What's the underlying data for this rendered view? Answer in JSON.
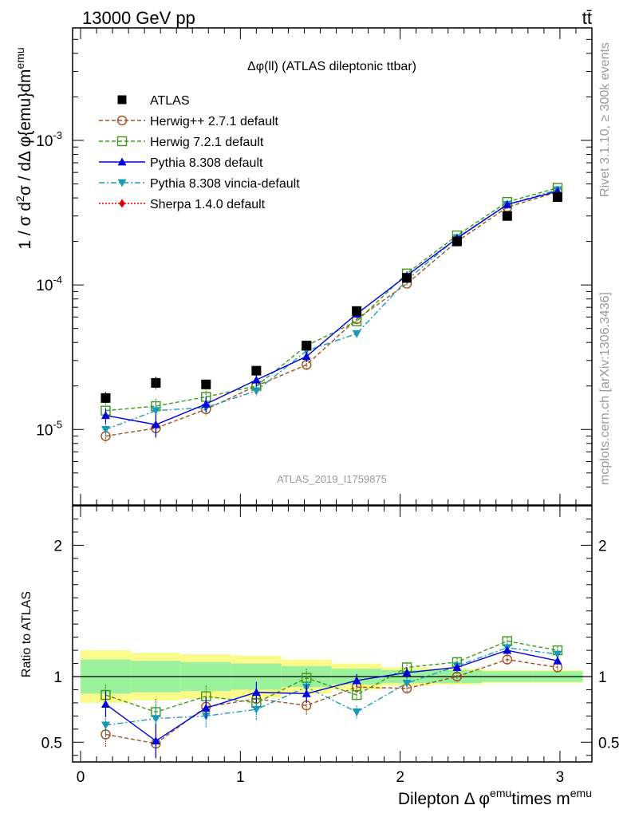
{
  "header": {
    "left": "13000 GeV pp",
    "right": "tt̄"
  },
  "side": {
    "rivet": "Rivet 3.1.10, ≥ 300k events",
    "mcplots": "mcplots.cern.ch [arXiv:1306.3436]"
  },
  "chart_data": [
    {
      "type": "scatter",
      "panel": "main",
      "title": "Δφ(ll) (ATLAS dileptonic ttbar)",
      "watermark": "ATLAS_2019_I1759875",
      "ylabel": "1 / σ  d²σ / dΔ φ{emu}dm^{emu}",
      "yscale": "log",
      "ylim": [
        3e-06,
        0.006
      ],
      "xlim": [
        -0.05,
        3.2
      ],
      "y_ticks": [
        {
          "value": 1e-05,
          "label": "10^{-5}"
        },
        {
          "value": 0.0001,
          "label": "10^{-4}"
        },
        {
          "value": 0.001,
          "label": "10^{-3}"
        }
      ],
      "x": [
        0.157,
        0.471,
        0.785,
        1.1,
        1.414,
        1.728,
        2.042,
        2.356,
        2.67,
        2.985
      ],
      "series": [
        {
          "name": "ATLAS",
          "color": "#000000",
          "marker": "square-filled",
          "line": "none",
          "values": [
            1.65e-05,
            2.1e-05,
            2.05e-05,
            2.55e-05,
            3.8e-05,
            6.6e-05,
            0.000112,
            0.0002,
            0.0003,
            0.000405
          ]
        },
        {
          "name": "Herwig++ 2.7.1 default",
          "color": "#a0501e",
          "marker": "circle-open",
          "line": "dashed",
          "values": [
            9e-06,
            1.02e-05,
            1.38e-05,
            2e-05,
            2.8e-05,
            5.8e-05,
            0.000102,
            0.0002,
            0.000345,
            0.00044
          ]
        },
        {
          "name": "Herwig 7.2.1 default",
          "color": "#3a9a1a",
          "marker": "square-open",
          "line": "dashed",
          "values": [
            1.35e-05,
            1.45e-05,
            1.68e-05,
            2e-05,
            3.8e-05,
            5.6e-05,
            0.00012,
            0.00022,
            0.000375,
            0.00047
          ]
        },
        {
          "name": "Pythia 8.308 default",
          "color": "#0000dd",
          "marker": "triangle-up",
          "line": "solid",
          "values": [
            1.25e-05,
            1.08e-05,
            1.5e-05,
            2.2e-05,
            3.2e-05,
            6.3e-05,
            0.000116,
            0.00021,
            0.00036,
            0.000445
          ]
        },
        {
          "name": "Pythia 8.308 vincia-default",
          "color": "#1a9ab8",
          "marker": "triangle-down",
          "line": "dashdot",
          "values": [
            1e-05,
            1.35e-05,
            1.42e-05,
            1.85e-05,
            3.5e-05,
            4.6e-05,
            0.000108,
            0.000212,
            0.00036,
            0.000455
          ]
        },
        {
          "name": "Sherpa 1.4.0 default",
          "color": "#dd0000",
          "marker": "diamond",
          "line": "dotted",
          "values": []
        }
      ],
      "errors": [
        [
          0.1,
          0.1,
          0.08,
          0.08,
          0.06,
          0.05,
          0.05,
          0.04,
          0.04,
          0.04
        ],
        [
          0.1,
          0.15,
          0.1,
          0.08,
          0.07,
          0.04,
          0.04,
          0.03,
          0.03,
          0.03
        ],
        [
          0.08,
          0.12,
          0.1,
          0.08,
          0.07,
          0.04,
          0.04,
          0.03,
          0.03,
          0.03
        ],
        [
          0.12,
          0.18,
          0.12,
          0.1,
          0.08,
          0.05,
          0.04,
          0.03,
          0.03,
          0.03
        ],
        [
          0.1,
          0.14,
          0.1,
          0.08,
          0.07,
          0.05,
          0.04,
          0.03,
          0.03,
          0.03
        ],
        []
      ]
    },
    {
      "type": "scatter",
      "panel": "ratio",
      "ylabel": "Ratio to ATLAS",
      "xlabel": "Dilepton Δ φ^{emu} times m^{emu}",
      "ylim": [
        0.35,
        2.3
      ],
      "xlim": [
        -0.05,
        3.2
      ],
      "y_ticks": [
        0.5,
        1,
        2
      ],
      "x_ticks": [
        0,
        1,
        2,
        3
      ],
      "x": [
        0.157,
        0.471,
        0.785,
        1.1,
        1.414,
        1.728,
        2.042,
        2.356,
        2.67,
        2.985
      ],
      "bands": {
        "edges": [
          0.0,
          0.314,
          0.628,
          0.942,
          1.257,
          1.571,
          1.885,
          2.199,
          2.513,
          2.827,
          3.142
        ],
        "inner": [
          0.13,
          0.12,
          0.11,
          0.1,
          0.08,
          0.06,
          0.05,
          0.05,
          0.04,
          0.04
        ],
        "outer": [
          0.2,
          0.18,
          0.17,
          0.16,
          0.13,
          0.1,
          0.07,
          0.06,
          0.05,
          0.05
        ],
        "inner_color": "#9cf29c",
        "outer_color": "#fbfb8b"
      },
      "series": [
        {
          "name": "Herwig++ 2.7.1 default",
          "color": "#a0501e",
          "marker": "circle-open",
          "line": "dashed",
          "values": [
            0.56,
            0.49,
            0.77,
            0.83,
            0.78,
            0.92,
            0.91,
            1.0,
            1.13,
            1.07
          ]
        },
        {
          "name": "Herwig 7.2.1 default",
          "color": "#3a9a1a",
          "marker": "square-open",
          "line": "dashed",
          "values": [
            0.86,
            0.73,
            0.85,
            0.8,
            0.99,
            0.86,
            1.07,
            1.11,
            1.27,
            1.2
          ]
        },
        {
          "name": "Pythia 8.308 default",
          "color": "#0000dd",
          "marker": "triangle-up",
          "line": "solid",
          "values": [
            0.79,
            0.51,
            0.76,
            0.88,
            0.87,
            0.97,
            1.03,
            1.07,
            1.2,
            1.12
          ]
        },
        {
          "name": "Pythia 8.308 vincia-default",
          "color": "#1a9ab8",
          "marker": "triangle-down",
          "line": "dashdot",
          "values": [
            0.63,
            0.68,
            0.7,
            0.75,
            0.92,
            0.73,
            0.95,
            1.08,
            1.22,
            1.17
          ]
        }
      ],
      "errors": [
        [
          0.1,
          0.12,
          0.08,
          0.07,
          0.07,
          0.05,
          0.04,
          0.03,
          0.03,
          0.03
        ],
        [
          0.08,
          0.1,
          0.08,
          0.07,
          0.07,
          0.04,
          0.04,
          0.03,
          0.03,
          0.03
        ],
        [
          0.1,
          0.13,
          0.08,
          0.08,
          0.07,
          0.05,
          0.04,
          0.03,
          0.03,
          0.03
        ],
        [
          0.09,
          0.1,
          0.09,
          0.08,
          0.07,
          0.05,
          0.04,
          0.03,
          0.03,
          0.03
        ]
      ]
    }
  ]
}
